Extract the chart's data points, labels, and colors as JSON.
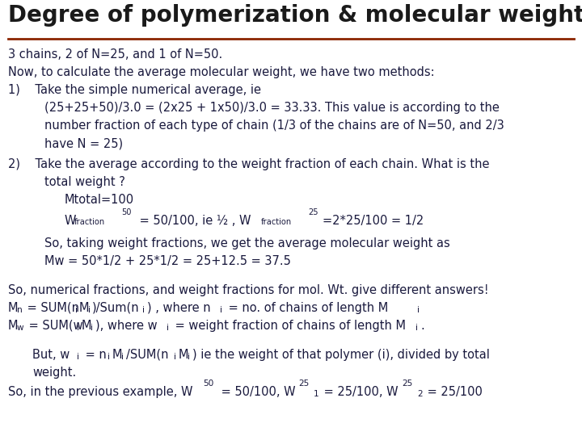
{
  "title": "Degree of polymerization & molecular weight",
  "title_color": "#1a1a1a",
  "title_fontsize": 20,
  "underline_color": "#8B2500",
  "background_color": "#ffffff",
  "text_color": "#1a1a3e",
  "body_fontsize": 10.5,
  "font_family": "DejaVu Sans"
}
